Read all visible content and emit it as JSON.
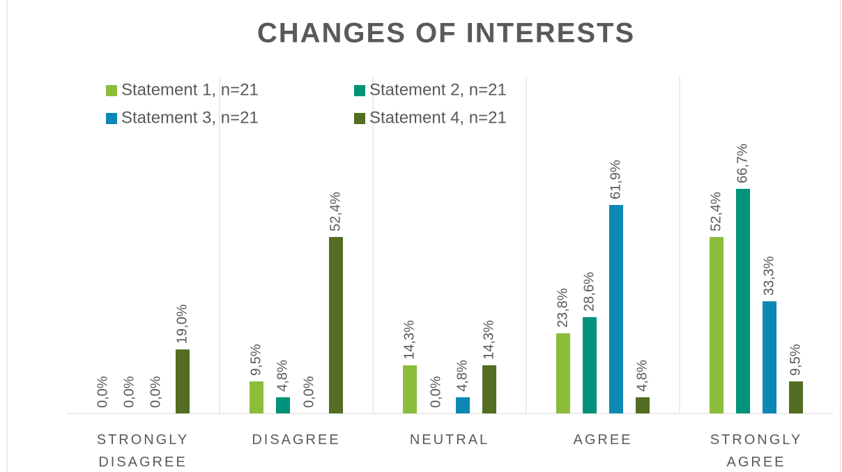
{
  "chart_data": {
    "type": "bar",
    "title": "CHANGES OF INTERESTS",
    "categories": [
      "STRONGLY DISAGREE",
      "DISAGREE",
      "NEUTRAL",
      "AGREE",
      "STRONGLY AGREE"
    ],
    "series": [
      {
        "name": "Statement 1, n=21",
        "color": "#8bbd3b",
        "values": [
          0.0,
          9.5,
          14.3,
          23.8,
          52.4
        ],
        "value_labels": [
          "0,0%",
          "9,5%",
          "14,3%",
          "23,8%",
          "52,4%"
        ]
      },
      {
        "name": "Statement 2, n=21",
        "color": "#009379",
        "values": [
          0.0,
          4.8,
          0.0,
          28.6,
          66.7
        ],
        "value_labels": [
          "0,0%",
          "4,8%",
          "0,0%",
          "28,6%",
          "66,7%"
        ]
      },
      {
        "name": "Statement 3, n=21",
        "color": "#0d87b3",
        "values": [
          0.0,
          0.0,
          4.8,
          61.9,
          33.3
        ],
        "value_labels": [
          "0,0%",
          "0,0%",
          "4,8%",
          "61,9%",
          "33,3%"
        ]
      },
      {
        "name": "Statement 4, n=21",
        "color": "#536d22",
        "values": [
          19.0,
          52.4,
          14.3,
          4.8,
          9.5
        ],
        "value_labels": [
          "19,0%",
          "52,4%",
          "14,3%",
          "4,8%",
          "9,5%"
        ]
      }
    ],
    "ylim": [
      0,
      100
    ],
    "legend": "top-left",
    "grid": "category"
  }
}
